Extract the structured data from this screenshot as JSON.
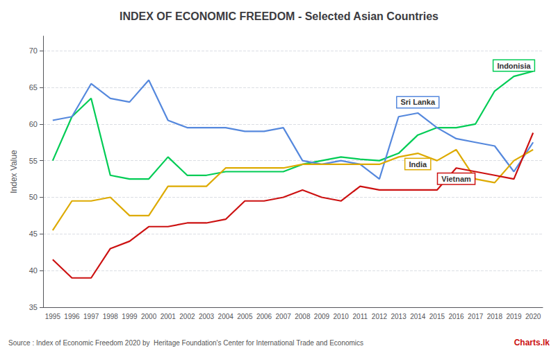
{
  "chart_data": {
    "type": "line",
    "title": "INDEX OF ECONOMIC FREEDOM - Selected Asian Countries",
    "ylabel": "Index Value",
    "source": "Source : Index of Economic Freedom 2020 by  Heritage Foundation's Center for International Trade and Economics",
    "annotations": [
      "Charts.lk"
    ],
    "categories": [
      1995,
      1996,
      1997,
      1998,
      1999,
      2000,
      2001,
      2002,
      2003,
      2004,
      2005,
      2006,
      2007,
      2008,
      2009,
      2010,
      2011,
      2012,
      2013,
      2014,
      2015,
      2016,
      2017,
      2018,
      2019,
      2020
    ],
    "series": [
      {
        "name": "Indonisia",
        "color": "#00cc55",
        "values": [
          55.0,
          61.0,
          63.5,
          53.0,
          52.5,
          52.5,
          55.5,
          53.0,
          53.0,
          53.5,
          53.5,
          53.5,
          53.5,
          54.5,
          55.0,
          55.5,
          55.2,
          55.0,
          56.0,
          58.5,
          59.5,
          59.5,
          60.0,
          64.5,
          66.5,
          67.2
        ]
      },
      {
        "name": "Sri Lanka",
        "color": "#5588dd",
        "values": [
          60.5,
          61.0,
          65.5,
          63.5,
          63.0,
          66.0,
          60.5,
          59.5,
          59.5,
          59.5,
          59.0,
          59.0,
          59.5,
          55.0,
          54.5,
          55.0,
          54.5,
          52.5,
          61.0,
          61.5,
          59.5,
          58.0,
          57.5,
          57.0,
          53.5,
          57.5
        ]
      },
      {
        "name": "India",
        "color": "#ddaa00",
        "values": [
          45.5,
          49.5,
          49.5,
          50.0,
          47.5,
          47.5,
          51.5,
          51.5,
          51.5,
          54.0,
          54.0,
          54.0,
          54.0,
          54.5,
          54.5,
          54.5,
          54.5,
          54.5,
          55.5,
          56.0,
          55.0,
          56.5,
          52.5,
          52.0,
          55.0,
          56.5
        ]
      },
      {
        "name": "Vietnam",
        "color": "#cc1111",
        "values": [
          41.5,
          39.0,
          39.0,
          43.0,
          44.0,
          46.0,
          46.0,
          46.5,
          46.5,
          47.0,
          49.5,
          49.5,
          50.0,
          51.0,
          50.0,
          49.5,
          51.5,
          51.0,
          51.0,
          51.0,
          51.0,
          54.0,
          53.5,
          53.0,
          52.5,
          58.8
        ]
      }
    ],
    "ylim": [
      35,
      72
    ],
    "yticks": [
      35,
      40,
      45,
      50,
      55,
      60,
      65,
      70
    ],
    "grid": true
  }
}
